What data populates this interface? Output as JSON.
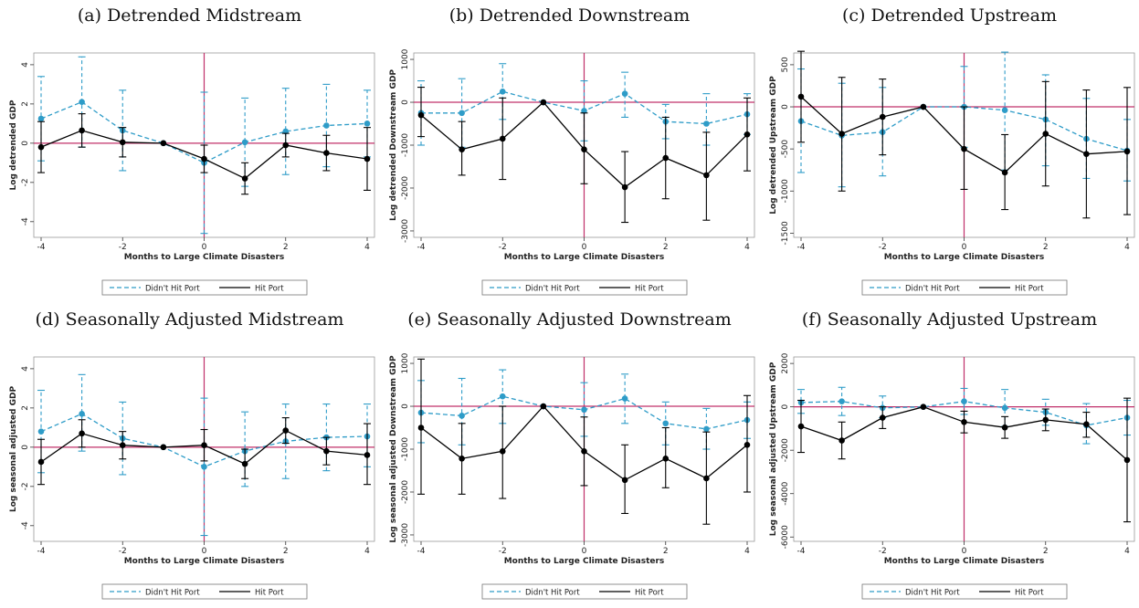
{
  "colors": {
    "didnt_hit": "#2E9CC8",
    "hit": "#000000",
    "zero_line": "#C0306A",
    "event_line": "#C0306A",
    "frame": "#9a9a9a"
  },
  "legend": {
    "didnt_hit_label": "Didn't Hit Port",
    "hit_label": "Hit Port"
  },
  "chart_data": [
    {
      "type": "line",
      "title": "(a) Detrended Midstream",
      "xlabel": "Months to Large Climate Disasters",
      "ylabel": "Log detrended GDP",
      "x": [
        -4,
        -3,
        -2,
        -1,
        0,
        1,
        2,
        3,
        4
      ],
      "xticks": [
        -4,
        -2,
        0,
        2,
        4
      ],
      "xlim": [
        -4,
        4
      ],
      "yticks": [
        -4,
        -2,
        0,
        2,
        4
      ],
      "ylim": [
        -4.8,
        4.6
      ],
      "series": [
        {
          "name": "Didn't Hit Port",
          "values": [
            1.25,
            2.1,
            0.65,
            0.0,
            -1.0,
            0.05,
            0.6,
            0.9,
            1.0
          ],
          "lower": [
            -0.9,
            -0.2,
            -1.4,
            0.0,
            -4.6,
            -2.2,
            -1.6,
            -1.2,
            -0.7
          ],
          "upper": [
            3.4,
            4.4,
            2.7,
            0.0,
            2.6,
            2.3,
            2.8,
            3.0,
            2.7
          ]
        },
        {
          "name": "Hit Port",
          "values": [
            -0.2,
            0.65,
            0.05,
            0.0,
            -0.8,
            -1.8,
            -0.1,
            -0.5,
            -0.8
          ],
          "lower": [
            -1.5,
            -0.2,
            -0.7,
            0.0,
            -1.5,
            -2.6,
            -0.7,
            -1.4,
            -2.4
          ],
          "upper": [
            1.1,
            1.5,
            0.8,
            0.0,
            -0.1,
            -1.0,
            0.5,
            0.4,
            0.8
          ]
        }
      ]
    },
    {
      "type": "line",
      "title": "(b) Detrended Downstream",
      "xlabel": "Months to Large Climate Disasters",
      "ylabel": "Log detrended Downstream GDP",
      "x": [
        -4,
        -3,
        -2,
        -1,
        0,
        1,
        2,
        3,
        4
      ],
      "xticks": [
        -4,
        -2,
        0,
        2,
        4
      ],
      "xlim": [
        -4,
        4
      ],
      "yticks": [
        -3000,
        -2000,
        -1000,
        0,
        1000
      ],
      "ylim": [
        -3150,
        1150
      ],
      "series": [
        {
          "name": "Didn't Hit Port",
          "values": [
            -250,
            -250,
            250,
            0,
            -200,
            200,
            -450,
            -500,
            -280
          ],
          "lower": [
            -1000,
            -1050,
            -400,
            0,
            -900,
            -350,
            -850,
            -1000,
            -750
          ],
          "upper": [
            500,
            550,
            900,
            0,
            500,
            700,
            -50,
            200,
            200
          ]
        },
        {
          "name": "Hit Port",
          "values": [
            -300,
            -1100,
            -850,
            0,
            -1100,
            -1980,
            -1300,
            -1700,
            -750
          ],
          "lower": [
            -800,
            -1700,
            -1800,
            0,
            -1900,
            -2800,
            -2250,
            -2750,
            -1600
          ],
          "upper": [
            350,
            -450,
            100,
            0,
            -250,
            -1150,
            -350,
            -700,
            100
          ]
        }
      ]
    },
    {
      "type": "line",
      "title": "(c) Detrended Upstream",
      "xlabel": "Months to Large Climate Disasters",
      "ylabel": "Log detrended Upstream GDP",
      "x": [
        -4,
        -3,
        -2,
        -1,
        0,
        1,
        2,
        3,
        4
      ],
      "xticks": [
        -4,
        -2,
        0,
        2,
        4
      ],
      "xlim": [
        -4,
        4
      ],
      "yticks": [
        -1500,
        -1000,
        -500,
        0,
        500
      ],
      "ylim": [
        -1550,
        640
      ],
      "series": [
        {
          "name": "Didn't Hit Port",
          "values": [
            -170,
            -340,
            -300,
            0,
            0,
            -40,
            -150,
            -380,
            -520
          ],
          "lower": [
            -780,
            -950,
            -820,
            0,
            -480,
            -750,
            -700,
            -850,
            -880
          ],
          "upper": [
            450,
            280,
            230,
            0,
            480,
            650,
            380,
            100,
            -150
          ]
        },
        {
          "name": "Hit Port",
          "values": [
            120,
            -320,
            -120,
            0,
            -500,
            -780,
            -320,
            -560,
            -530
          ],
          "lower": [
            -420,
            -1000,
            -570,
            0,
            -980,
            -1220,
            -940,
            -1320,
            -1280
          ],
          "upper": [
            660,
            350,
            330,
            0,
            0,
            -330,
            300,
            200,
            230
          ]
        }
      ]
    },
    {
      "type": "line",
      "title": "(d) Seasonally Adjusted Midstream",
      "xlabel": "Months to Large Climate Disasters",
      "ylabel": "Log seasonal adjusted GDP",
      "x": [
        -4,
        -3,
        -2,
        -1,
        0,
        1,
        2,
        3,
        4
      ],
      "xticks": [
        -4,
        -2,
        0,
        2,
        4
      ],
      "xlim": [
        -4,
        4
      ],
      "yticks": [
        -4,
        -2,
        0,
        2,
        4
      ],
      "ylim": [
        -4.8,
        4.6
      ],
      "series": [
        {
          "name": "Didn't Hit Port",
          "values": [
            0.8,
            1.7,
            0.45,
            0.0,
            -1.0,
            -0.2,
            0.3,
            0.5,
            0.55
          ],
          "lower": [
            -1.3,
            -0.2,
            -1.4,
            0.0,
            -4.5,
            -2.0,
            -1.6,
            -1.2,
            -1.0
          ],
          "upper": [
            2.9,
            3.7,
            2.3,
            0.0,
            2.5,
            1.8,
            2.2,
            2.2,
            2.2
          ]
        },
        {
          "name": "Hit Port",
          "values": [
            -0.75,
            0.7,
            0.1,
            0.0,
            0.1,
            -0.85,
            0.85,
            -0.2,
            -0.4
          ],
          "lower": [
            -1.9,
            0.0,
            -0.6,
            0.0,
            -0.7,
            -1.6,
            0.2,
            -0.9,
            -1.9
          ],
          "upper": [
            0.4,
            1.4,
            0.8,
            0.0,
            0.9,
            -0.1,
            1.5,
            0.5,
            1.2
          ]
        }
      ]
    },
    {
      "type": "line",
      "title": "(e) Seasonally Adjusted Downstream",
      "xlabel": "Months to Large Climate Disasters",
      "ylabel": "Log seasonal adjusted Downstream GDP",
      "x": [
        -4,
        -3,
        -2,
        -1,
        0,
        1,
        2,
        3,
        4
      ],
      "xticks": [
        -4,
        -2,
        0,
        2,
        4
      ],
      "xlim": [
        -4,
        4
      ],
      "yticks": [
        -3000,
        -2000,
        -1000,
        0,
        1000
      ],
      "ylim": [
        -3150,
        1150
      ],
      "series": [
        {
          "name": "Didn't Hit Port",
          "values": [
            -150,
            -220,
            230,
            0,
            -80,
            180,
            -400,
            -530,
            -320
          ],
          "lower": [
            -850,
            -900,
            -400,
            0,
            -700,
            -400,
            -900,
            -1000,
            -750
          ],
          "upper": [
            600,
            650,
            850,
            0,
            550,
            750,
            100,
            -50,
            100
          ]
        },
        {
          "name": "Hit Port",
          "values": [
            -500,
            -1220,
            -1050,
            0,
            -1050,
            -1720,
            -1220,
            -1680,
            -900
          ],
          "lower": [
            -2050,
            -2050,
            -2150,
            0,
            -1850,
            -2500,
            -1900,
            -2750,
            -2000
          ],
          "upper": [
            1100,
            -400,
            0,
            0,
            -250,
            -900,
            -500,
            -600,
            250
          ]
        }
      ]
    },
    {
      "type": "line",
      "title": "(f) Seasonally Adjusted Upstream",
      "xlabel": "Months to Large Climate Disasters",
      "ylabel": "Log seasonal adjusted Upstream GDP",
      "x": [
        -4,
        -3,
        -2,
        -1,
        0,
        1,
        2,
        3,
        4
      ],
      "xticks": [
        -4,
        -2,
        0,
        2,
        4
      ],
      "xlim": [
        -4,
        4
      ],
      "yticks": [
        -6000,
        -4000,
        -2000,
        0,
        2000
      ],
      "ylim": [
        -6200,
        2300
      ],
      "series": [
        {
          "name": "Didn't Hit Port",
          "values": [
            200,
            250,
            -50,
            0,
            250,
            -50,
            -250,
            -850,
            -500
          ],
          "lower": [
            -300,
            -400,
            -500,
            0,
            -350,
            -900,
            -850,
            -1700,
            -1300
          ],
          "upper": [
            800,
            900,
            500,
            0,
            850,
            800,
            350,
            150,
            300
          ]
        },
        {
          "name": "Hit Port",
          "values": [
            -900,
            -1550,
            -500,
            0,
            -700,
            -950,
            -600,
            -800,
            -2450
          ],
          "lower": [
            -2100,
            -2400,
            -1000,
            0,
            -1200,
            -1450,
            -1100,
            -1400,
            -5300
          ],
          "upper": [
            300,
            -700,
            0,
            0,
            -200,
            -450,
            -100,
            -250,
            400
          ]
        }
      ]
    }
  ]
}
